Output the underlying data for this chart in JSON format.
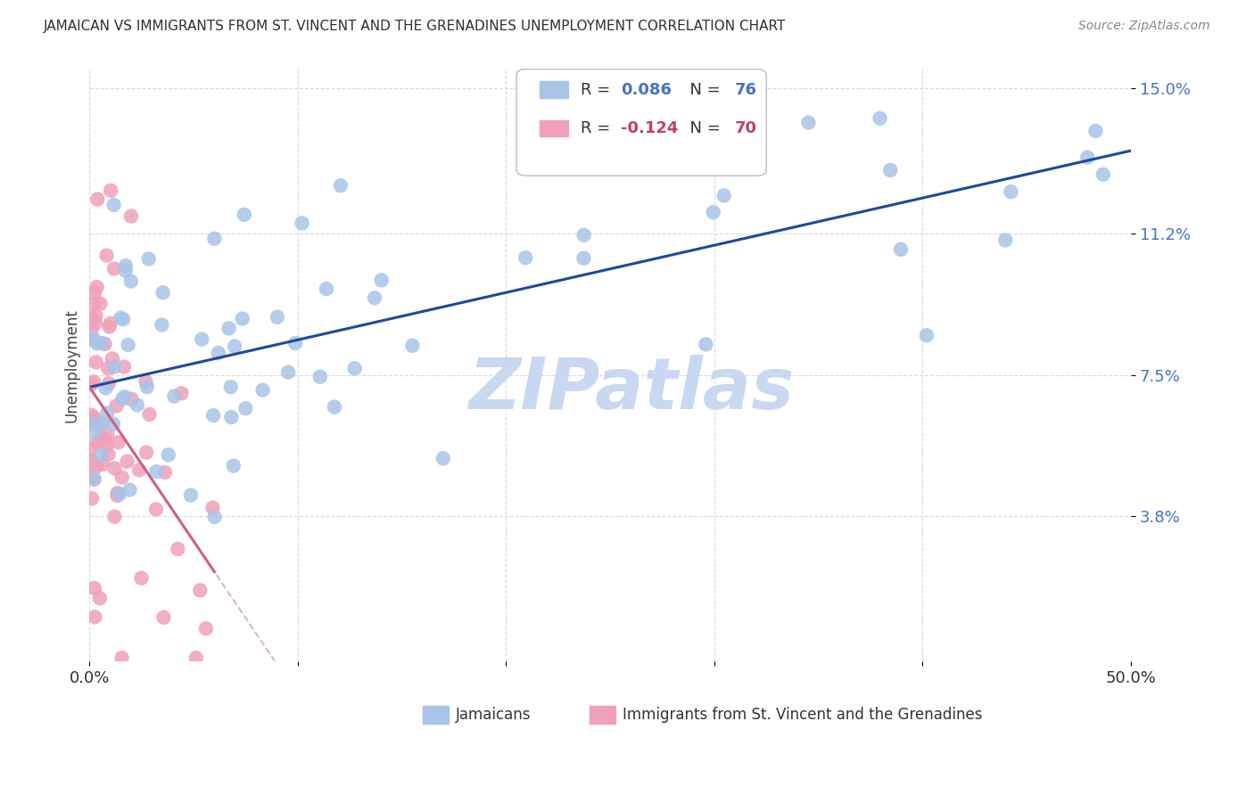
{
  "title": "JAMAICAN VS IMMIGRANTS FROM ST. VINCENT AND THE GRENADINES UNEMPLOYMENT CORRELATION CHART",
  "source": "Source: ZipAtlas.com",
  "ylabel": "Unemployment",
  "xlim": [
    0.0,
    0.5
  ],
  "ylim": [
    0.0,
    0.155
  ],
  "yticks": [
    0.038,
    0.075,
    0.112,
    0.15
  ],
  "ytick_labels": [
    "3.8%",
    "7.5%",
    "11.2%",
    "15.0%"
  ],
  "xticks": [
    0.0,
    0.1,
    0.2,
    0.3,
    0.4,
    0.5
  ],
  "xtick_labels": [
    "0.0%",
    "",
    "",
    "",
    "",
    "50.0%"
  ],
  "color_jamaican": "#a8c4e8",
  "color_svg": "#f0a0b8",
  "color_trend_jamaican": "#1a4a9c",
  "color_trend_svg_solid": "#d06080",
  "color_trend_svg_dash": "#d8b8c0",
  "watermark": "ZIPatlas",
  "watermark_color": "#c8d8f0",
  "background": "#ffffff",
  "grid_color": "#d8d8e8",
  "title_color": "#303030",
  "source_color": "#888888",
  "tick_color_y": "#4472c4",
  "tick_color_x": "#303030",
  "legend_r1_label": "R = ",
  "legend_r1_val": "0.086",
  "legend_n1_label": "N = ",
  "legend_n1_val": "76",
  "legend_r2_label": "R = ",
  "legend_r2_val": "-0.124",
  "legend_n2_label": "N = ",
  "legend_n2_val": "70",
  "legend_val_color_blue": "#4472c4",
  "legend_val_color_pink": "#c04060"
}
